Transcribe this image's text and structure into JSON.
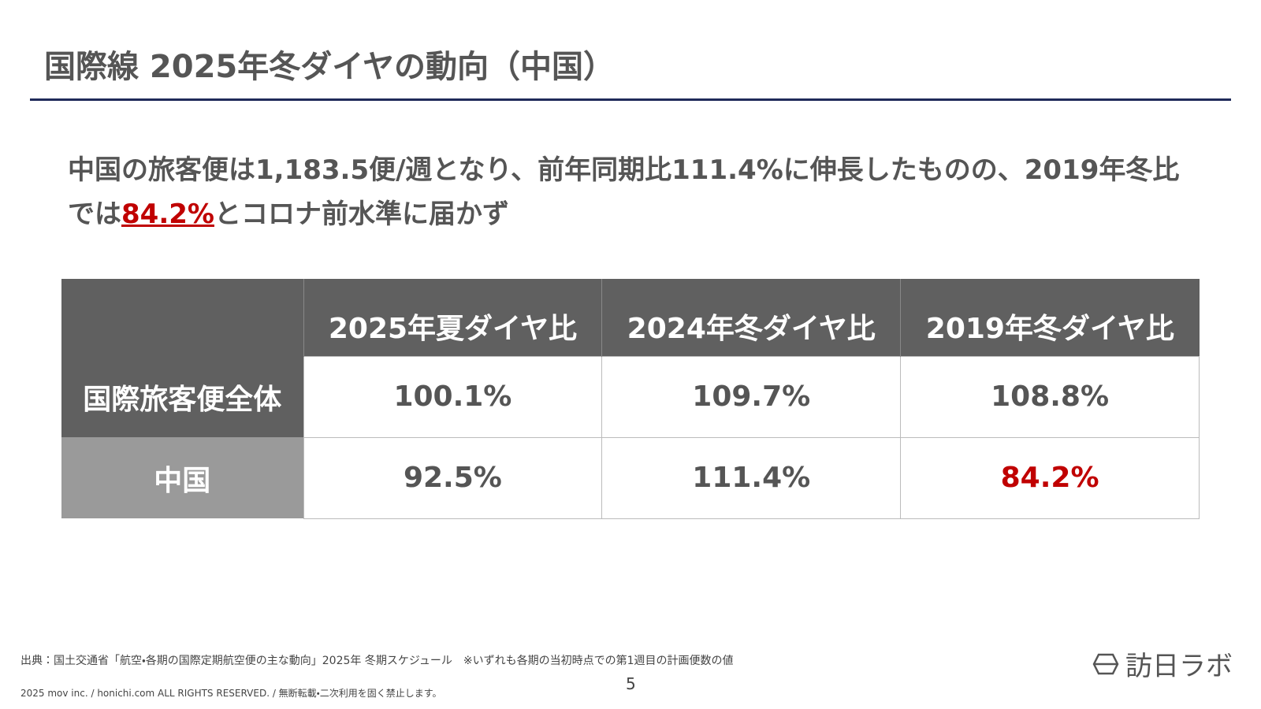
{
  "header": {
    "title": "国際線 2025年冬ダイヤの動向（中国）"
  },
  "lead": {
    "text_before": "中国の旅客便は1,183.5便/週となり、前年同期比111.4%に伸長したものの、2019年冬比では",
    "highlight": "84.2%",
    "text_after": "とコロナ前水準に届かず"
  },
  "table": {
    "columns": [
      "",
      "2025年夏ダイヤ比",
      "2024年冬ダイヤ比",
      "2019年冬ダイヤ比"
    ],
    "rows": [
      [
        "国際旅客便全体",
        "100.1%",
        "109.7%",
        "108.8%"
      ],
      [
        "中国",
        "92.5%",
        "111.4%",
        "84.2%"
      ]
    ]
  },
  "footer": {
    "source": "出典：国土交通省「航空・各期の国際定期航空便の主な動向」2025年 冬期スケジュール　※いずれも各期の当初時点での第1週目の計画便数の値",
    "copyright": "2025 mov inc. / honichi.com ALL RIGHTS RESERVED. / 無断転載・二次利用を固く禁止します。",
    "page_number": "5",
    "logo": "訪日ラボ"
  }
}
